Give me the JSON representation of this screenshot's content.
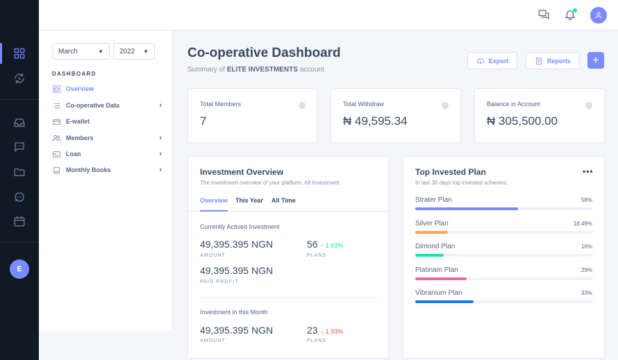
{
  "header": {
    "messages_icon": "chat-icon",
    "notifications_icon": "bell-icon",
    "user_icon": "user-icon"
  },
  "rail": {
    "avatar_initial": "E",
    "icons": [
      "dashboard-icon",
      "transfer-icon",
      "inbox-icon",
      "message-icon",
      "folder-icon",
      "chat-icon",
      "calendar-icon"
    ]
  },
  "sidebar": {
    "month_select": "March",
    "year_select": "2022",
    "section_title": "DASHBOARD",
    "items": [
      {
        "label": "Overview",
        "icon": "dashboard-icon",
        "active": true,
        "has_children": false
      },
      {
        "label": "Co-operative Data",
        "icon": "list-icon",
        "active": false,
        "has_children": true
      },
      {
        "label": "E-wallet",
        "icon": "wallet-icon",
        "active": false,
        "has_children": false
      },
      {
        "label": "Members",
        "icon": "users-icon",
        "active": false,
        "has_children": true
      },
      {
        "label": "Loan",
        "icon": "card-icon",
        "active": false,
        "has_children": true
      },
      {
        "label": "Monthly Books",
        "icon": "book-icon",
        "active": false,
        "has_children": true
      }
    ]
  },
  "page": {
    "title": "Co-operative Dashboard",
    "subtitle_prefix": "Summary of ",
    "subtitle_company": "ELITE INVESTMENTS",
    "subtitle_suffix": " account",
    "export_label": "Export",
    "reports_label": "Reports",
    "add_label": "+"
  },
  "stats": [
    {
      "label": "Total Members",
      "value": "7"
    },
    {
      "label": "Total Withdraw",
      "value": "₦ 49,595.34"
    },
    {
      "label": "Balance in Account",
      "value": "₦ 305,500.00"
    }
  ],
  "investment_overview": {
    "title": "Investment Overview",
    "subtitle": "The investment overview of your platform.",
    "link": "All Investment",
    "tabs": [
      "Overview",
      "This Year",
      "All Time"
    ],
    "active_tab": 0,
    "current": {
      "heading": "Currently Actived Investment",
      "amount": "49,395.395 NGN",
      "amount_label": "AMOUNT",
      "plans": "56",
      "plans_change": "↑ 1.93%",
      "plans_label": "PLANS",
      "profit": "49,395.395 NGN",
      "profit_label": "PAID PROFIT"
    },
    "month": {
      "heading": "Investment in this Month",
      "amount": "49,395.395 NGN",
      "amount_label": "AMOUNT",
      "plans": "23",
      "plans_change": "↓ 1.93%",
      "plans_label": "PLANS"
    }
  },
  "top_plans": {
    "title": "Top Invested Plan",
    "subtitle": "In last 30 days top invested schemes.",
    "more_label": "•••",
    "plans": [
      {
        "name": "Strater Plan",
        "percent_label": "58%",
        "value": 58,
        "color": "#798bff"
      },
      {
        "name": "Silver Plan",
        "percent_label": "18.49%",
        "value": 18.49,
        "color": "#ffa353"
      },
      {
        "name": "Dimond Plan",
        "percent_label": "16%",
        "value": 16,
        "color": "#1ee0ac"
      },
      {
        "name": "Platinam Plan",
        "percent_label": "29%",
        "value": 29,
        "color": "#f4609f"
      },
      {
        "name": "Vibranium Plan",
        "percent_label": "33%",
        "value": 33,
        "color": "#1676fb"
      }
    ]
  }
}
